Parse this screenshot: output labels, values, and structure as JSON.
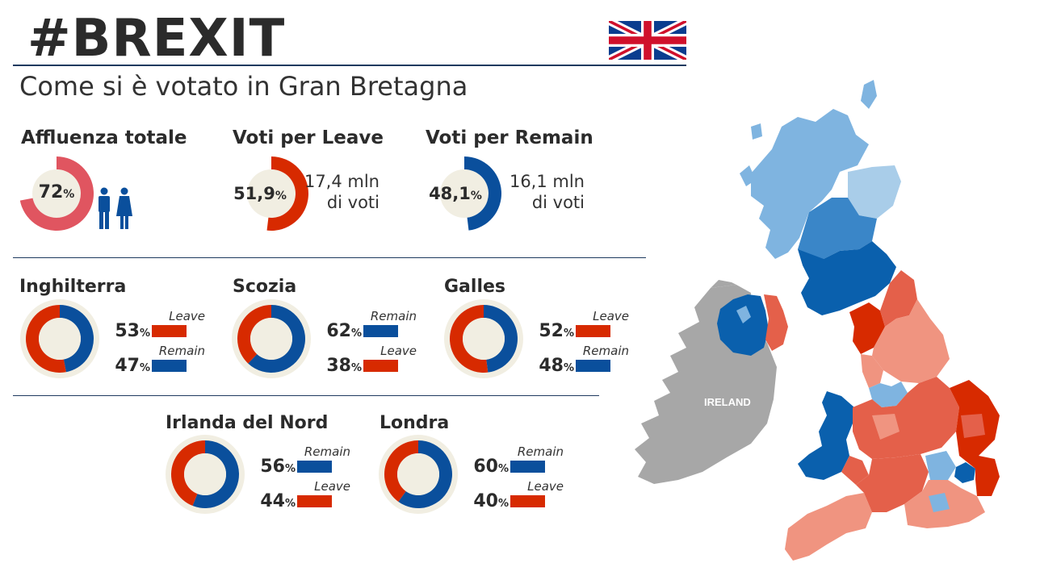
{
  "header": {
    "title": "#BREXIT",
    "subtitle": "Come si è votato in Gran Bretagna",
    "flag_icon": "union-jack-flag-icon"
  },
  "colors": {
    "leave": "#d72a00",
    "remain": "#0a4f9c",
    "turnout": "#e05560",
    "ring_bg": "#f1eee2",
    "map_ireland": "#a7a7a7"
  },
  "summary": {
    "turnout": {
      "label": "Affluenza totale",
      "value": "72",
      "unit": "%",
      "fraction": 0.72,
      "icon": "man-woman-icon"
    },
    "leave": {
      "label": "Voti per Leave",
      "value": "51,9",
      "unit": "%",
      "fraction": 0.519,
      "note_line1": "17,4 mln",
      "note_line2": "di voti"
    },
    "remain": {
      "label": "Voti per Remain",
      "value": "48,1",
      "unit": "%",
      "fraction": 0.481,
      "note_line1": "16,1 mln",
      "note_line2": "di voti"
    }
  },
  "regions": [
    {
      "name": "Inghilterra",
      "first_label": "Leave",
      "first_value": "53",
      "second_label": "Remain",
      "second_value": "47",
      "unit": "%",
      "leave": 53,
      "remain": 47
    },
    {
      "name": "Scozia",
      "first_label": "Remain",
      "first_value": "62",
      "second_label": "Leave",
      "second_value": "38",
      "unit": "%",
      "leave": 38,
      "remain": 62
    },
    {
      "name": "Galles",
      "first_label": "Leave",
      "first_value": "52",
      "second_label": "Remain",
      "second_value": "48",
      "unit": "%",
      "leave": 52,
      "remain": 48
    },
    {
      "name": "Irlanda del Nord",
      "first_label": "Remain",
      "first_value": "56",
      "second_label": "Leave",
      "second_value": "44",
      "unit": "%",
      "leave": 44,
      "remain": 56
    },
    {
      "name": "Londra",
      "first_label": "Remain",
      "first_value": "60",
      "second_label": "Leave",
      "second_value": "40",
      "unit": "%",
      "leave": 40,
      "remain": 60
    }
  ],
  "map": {
    "ireland_label": "IRELAND"
  },
  "chart_data": [
    {
      "type": "pie",
      "title": "Affluenza totale",
      "categories": [
        "Affluenza"
      ],
      "values": [
        72
      ]
    },
    {
      "type": "pie",
      "title": "Voti per Leave",
      "categories": [
        "Leave"
      ],
      "values": [
        51.9
      ]
    },
    {
      "type": "pie",
      "title": "Voti per Remain",
      "categories": [
        "Remain"
      ],
      "values": [
        48.1
      ]
    },
    {
      "type": "pie",
      "title": "Inghilterra",
      "categories": [
        "Leave",
        "Remain"
      ],
      "values": [
        53,
        47
      ]
    },
    {
      "type": "pie",
      "title": "Scozia",
      "categories": [
        "Remain",
        "Leave"
      ],
      "values": [
        62,
        38
      ]
    },
    {
      "type": "pie",
      "title": "Galles",
      "categories": [
        "Leave",
        "Remain"
      ],
      "values": [
        52,
        48
      ]
    },
    {
      "type": "pie",
      "title": "Irlanda del Nord",
      "categories": [
        "Remain",
        "Leave"
      ],
      "values": [
        56,
        44
      ]
    },
    {
      "type": "pie",
      "title": "Londra",
      "categories": [
        "Remain",
        "Leave"
      ],
      "values": [
        60,
        40
      ]
    }
  ]
}
